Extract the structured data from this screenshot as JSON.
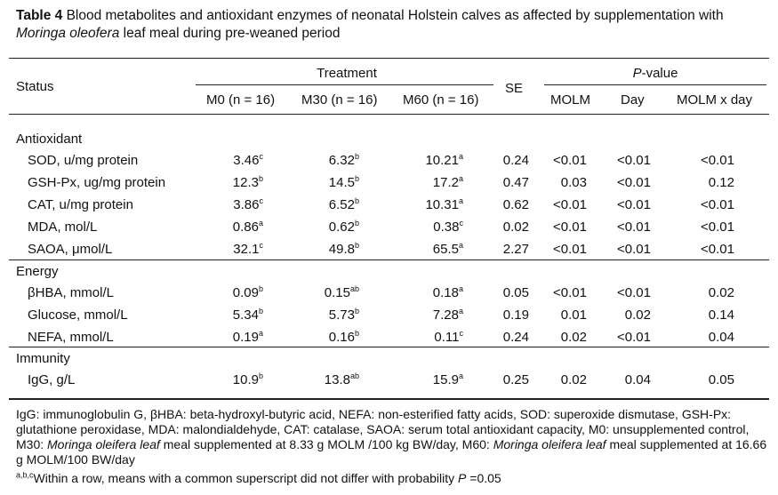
{
  "title": {
    "label": "Table 4",
    "text_pre": " Blood metabolites and antioxidant enzymes of neonatal Holstein calves as affected by supplementation with ",
    "species": "Moringa oleofera",
    "text_post": " leaf meal during pre-weaned period"
  },
  "header": {
    "status": "Status",
    "treatment": "Treatment",
    "se": "SE",
    "pvalue_p": "P",
    "pvalue_rest": "-value",
    "m0": "M0 (n = 16)",
    "m30": "M30 (n = 16)",
    "m60": "M60 (n = 16)",
    "molm": "MOLM",
    "day": "Day",
    "molm_day": "MOLM x day"
  },
  "groups": [
    {
      "name": "Antioxidant",
      "rows": [
        {
          "label": "SOD, u/mg protein",
          "m0": "3.46",
          "m0s": "c",
          "m30": "6.32",
          "m30s": "b",
          "m60": "10.21",
          "m60s": "a",
          "se": "0.24",
          "molm": "<0.01",
          "day": "<0.01",
          "inter": "<0.01"
        },
        {
          "label": "GSH-Px, ug/mg protein",
          "m0": "12.3",
          "m0s": "b",
          "m30": "14.5",
          "m30s": "b",
          "m60": "17.2",
          "m60s": "a",
          "se": "0.47",
          "molm": "0.03",
          "day": "<0.01",
          "inter": "0.12"
        },
        {
          "label": "CAT, u/mg protein",
          "m0": "3.86",
          "m0s": "c",
          "m30": "6.52",
          "m30s": "b",
          "m60": "10.31",
          "m60s": "a",
          "se": "0.62",
          "molm": "<0.01",
          "day": "<0.01",
          "inter": "<0.01"
        },
        {
          "label": "MDA, mol/L",
          "m0": "0.86",
          "m0s": "a",
          "m30": "0.62",
          "m30s": "b",
          "m60": "0.38",
          "m60s": "c",
          "se": "0.02",
          "molm": "<0.01",
          "day": "<0.01",
          "inter": "<0.01"
        },
        {
          "label": "SAOA, μmol/L",
          "m0": "32.1",
          "m0s": "c",
          "m30": "49.8",
          "m30s": "b",
          "m60": "65.5",
          "m60s": "a",
          "se": "2.27",
          "molm": "<0.01",
          "day": "<0.01",
          "inter": "<0.01"
        }
      ]
    },
    {
      "name": "Energy",
      "rows": [
        {
          "label": "βHBA, mmol/L",
          "m0": "0.09",
          "m0s": "b",
          "m30": "0.15",
          "m30s": "ab",
          "m60": "0.18",
          "m60s": "a",
          "se": "0.05",
          "molm": "<0.01",
          "day": "<0.01",
          "inter": "0.02"
        },
        {
          "label": "Glucose, mmol/L",
          "m0": "5.34",
          "m0s": "b",
          "m30": "5.73",
          "m30s": "b",
          "m60": "7.28",
          "m60s": "a",
          "se": "0.19",
          "molm": "0.01",
          "day": "0.02",
          "inter": "0.14"
        },
        {
          "label": "NEFA, mmol/L",
          "m0": "0.19",
          "m0s": "a",
          "m30": "0.16",
          "m30s": "b",
          "m60": "0.11",
          "m60s": "c",
          "se": "0.24",
          "molm": "0.02",
          "day": "<0.01",
          "inter": "0.04"
        }
      ]
    },
    {
      "name": "Immunity",
      "rows": [
        {
          "label": "IgG, g/L",
          "m0": "10.9",
          "m0s": "b",
          "m30": "13.8",
          "m30s": "ab",
          "m60": "15.9",
          "m60s": "a",
          "se": "0.25",
          "molm": "0.02",
          "day": "0.04",
          "inter": "0.05"
        }
      ]
    }
  ],
  "footnote": {
    "line1_pre": "IgG: immunoglobulin G, βHBA: beta-hydroxyl-butyric acid, NEFA: non-esterified fatty acids, SOD: superoxide dismutase, GSH-Px: glutathione peroxidase, MDA: malondialdehyde, CAT: catalase, SAOA: serum total antioxidant capacity, M0: unsupplemented control, M30: ",
    "italic1": "Moringa oleifera leaf",
    "mid": " meal supplemented at 8.33 g MOLM /100 kg BW/day, M60: ",
    "italic2": "Moringa oleifera leaf",
    "end": " meal supplemented at 16.66 g MOLM/100 BW/day",
    "sup": "a,b,c",
    "line2_pre": "Within a row, means with a common superscript did not differ with probability ",
    "line2_p": "P",
    "line2_post": " =0.05"
  }
}
